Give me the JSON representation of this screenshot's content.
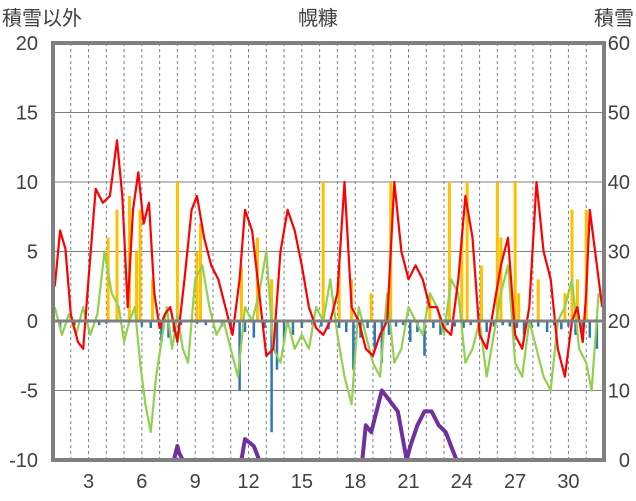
{
  "chart_data": {
    "type": "line",
    "title": "幌糠",
    "left_axis_label": "積雪以外",
    "right_axis_label": "積雪",
    "ylim_left": [
      -10,
      20
    ],
    "yticks_left": [
      "-10",
      "-5",
      "0",
      "5",
      "10",
      "15",
      "20"
    ],
    "ylim_right": [
      0,
      60
    ],
    "yticks_right": [
      "0",
      "10",
      "20",
      "30",
      "40",
      "50",
      "60"
    ],
    "xlim": [
      1,
      32
    ],
    "xticks": [
      "3",
      "6",
      "9",
      "12",
      "15",
      "18",
      "21",
      "24",
      "27",
      "30"
    ],
    "grid": {
      "horizontal": "solid",
      "vertical": "dashed"
    },
    "colors": {
      "temperature": "#ff0000",
      "dew_point": "#92d050",
      "sunshine": "#ffc000",
      "precipitation": "#2e75b6",
      "snow_depth": "#7030a0",
      "zero_line": "#808080",
      "frame": "#808080",
      "grid": "#808080"
    },
    "series": [
      {
        "key": "temperature",
        "axis": "left",
        "style": "line",
        "x": [
          1.1,
          1.4,
          1.7,
          2.0,
          2.4,
          2.7,
          3.0,
          3.4,
          3.8,
          4.2,
          4.6,
          4.9,
          5.2,
          5.5,
          5.8,
          6.1,
          6.4,
          6.7,
          7.0,
          7.3,
          7.6,
          8.0,
          8.4,
          8.8,
          9.1,
          9.5,
          9.9,
          10.3,
          10.7,
          11.1,
          11.5,
          11.8,
          12.2,
          12.6,
          13.0,
          13.4,
          13.8,
          14.2,
          14.6,
          15.0,
          15.4,
          15.8,
          16.2,
          16.6,
          17.0,
          17.4,
          17.8,
          18.2,
          18.6,
          19.0,
          19.4,
          19.8,
          20.2,
          20.6,
          21.0,
          21.4,
          21.8,
          22.2,
          22.6,
          23.0,
          23.4,
          23.8,
          24.2,
          24.6,
          25.0,
          25.4,
          25.8,
          26.2,
          26.6,
          27.0,
          27.4,
          27.8,
          28.2,
          28.6,
          29.0,
          29.4,
          29.8,
          30.2,
          30.5,
          30.8,
          31.0,
          31.2,
          31.5,
          31.9
        ],
        "y": [
          2.5,
          6.5,
          5.2,
          0.5,
          -1.5,
          -2,
          3,
          9.5,
          8.5,
          9,
          13,
          9,
          1,
          8,
          10.7,
          7,
          8.5,
          2,
          -0.5,
          0.5,
          1,
          -1.5,
          3,
          8,
          9,
          6,
          4,
          3,
          1,
          -1,
          3,
          8,
          6.5,
          2,
          -2.5,
          -2,
          5,
          8,
          6.5,
          4,
          1,
          -0.5,
          -1,
          0,
          2,
          10,
          1,
          0,
          -2,
          -2.5,
          -1,
          0,
          10,
          5,
          3,
          4,
          3,
          1,
          1,
          -0.5,
          -1,
          3,
          9,
          6,
          -1,
          -2,
          1,
          4,
          6,
          -1,
          -2,
          1,
          10,
          5,
          3,
          -2,
          -4,
          0,
          1,
          -1.5,
          2,
          8,
          5,
          1
        ]
      },
      {
        "key": "dew_point",
        "axis": "left",
        "style": "line",
        "x": [
          1.1,
          1.5,
          1.9,
          2.3,
          2.7,
          3.1,
          3.5,
          3.9,
          4.3,
          4.7,
          5.0,
          5.3,
          5.6,
          5.9,
          6.2,
          6.5,
          6.8,
          7.1,
          7.4,
          7.7,
          8.0,
          8.3,
          8.6,
          9.0,
          9.4,
          9.8,
          10.2,
          10.6,
          11.0,
          11.4,
          11.8,
          12.2,
          12.6,
          13.0,
          13.4,
          13.8,
          14.2,
          14.6,
          15.0,
          15.4,
          15.8,
          16.2,
          16.6,
          17.0,
          17.4,
          17.8,
          18.2,
          18.6,
          19.0,
          19.4,
          19.8,
          20.2,
          20.6,
          21.0,
          21.4,
          21.8,
          22.2,
          22.6,
          23.0,
          23.4,
          23.8,
          24.2,
          24.6,
          25.0,
          25.4,
          25.8,
          26.2,
          26.6,
          27.0,
          27.4,
          27.8,
          28.2,
          28.6,
          29.0,
          29.4,
          29.8,
          30.2,
          30.6,
          31.0,
          31.3,
          31.7
        ],
        "y": [
          1,
          -1,
          0.5,
          -1,
          1,
          -1,
          0.5,
          5,
          2,
          1,
          -1.5,
          0,
          1,
          -3,
          -6,
          -8,
          -4,
          -1.5,
          1,
          -2,
          0.5,
          -2,
          -3,
          3,
          4,
          1,
          -1,
          0,
          -2,
          -4,
          1,
          0,
          2,
          5,
          -2,
          -3,
          0,
          -2,
          -1,
          -2,
          1,
          0,
          3,
          -1,
          -4,
          -6,
          1,
          -1,
          -3,
          -4,
          2,
          -3,
          -2,
          1,
          0,
          -1,
          2,
          1,
          -1,
          3,
          2,
          -3,
          -2,
          0,
          -4,
          -1,
          2,
          4,
          -3,
          -4,
          0,
          -2,
          -4,
          -5,
          0,
          1,
          3,
          -2,
          -3,
          -5,
          2
        ]
      },
      {
        "key": "sunshine",
        "axis": "left",
        "style": "bar",
        "x": [
          4.1,
          4.6,
          5.3,
          5.7,
          5.9,
          6.6,
          8.0,
          9.1,
          9.3,
          11.6,
          12.5,
          13.3,
          16.2,
          17.1,
          17.8,
          18.9,
          20.0,
          22.2,
          23.3,
          24.0,
          24.3,
          25.1,
          26.0,
          26.2,
          27.0,
          27.2,
          28.3,
          29.8,
          30.2,
          30.5,
          31.0
        ],
        "y": [
          6,
          8,
          9,
          5,
          8,
          3,
          10,
          5,
          7,
          4,
          6,
          3,
          10,
          4,
          3,
          2,
          10,
          2,
          10,
          6,
          10,
          4,
          10,
          6,
          10,
          2,
          3,
          2,
          8,
          3,
          8
        ]
      },
      {
        "key": "precipitation",
        "axis": "left",
        "style": "bar",
        "x": [
          1.4,
          2.2,
          3.6,
          4.0,
          6.0,
          6.5,
          7.1,
          7.5,
          7.8,
          8.2,
          9.1,
          9.6,
          10.5,
          11.0,
          11.5,
          11.8,
          12.3,
          12.9,
          13.3,
          13.6,
          14.0,
          14.5,
          15.0,
          15.6,
          16.1,
          16.5,
          17.1,
          17.5,
          17.9,
          18.3,
          18.7,
          19.1,
          19.5,
          19.9,
          20.3,
          20.7,
          21.1,
          21.5,
          21.9,
          22.4,
          22.8,
          23.2,
          23.6,
          24.1,
          24.5,
          25.0,
          25.4,
          25.8,
          26.3,
          26.7,
          27.1,
          27.5,
          27.9,
          28.3,
          28.8,
          29.2,
          29.6,
          30.0,
          30.4,
          30.8,
          31.2,
          31.6
        ],
        "y": [
          -0.5,
          -0.3,
          -0.3,
          -0.2,
          -0.4,
          -0.5,
          -1.5,
          -1.2,
          -0.8,
          -0.3,
          -0.2,
          -0.3,
          -0.4,
          -0.6,
          -5,
          -0.8,
          -1.2,
          -0.5,
          -8,
          -3.5,
          -1.5,
          -1,
          -0.5,
          -0.3,
          -0.4,
          -0.6,
          -0.5,
          -0.8,
          -3.5,
          -1.2,
          -0.5,
          -2,
          -3,
          -1,
          -0.4,
          -0.3,
          -1.5,
          -0.8,
          -2.5,
          -0.5,
          -1,
          -0.3,
          -0.4,
          -0.5,
          -0.3,
          -0.4,
          -0.8,
          -0.4,
          -0.3,
          -0.4,
          -0.5,
          -1,
          -0.5,
          -0.4,
          -0.8,
          -0.3,
          -0.6,
          -0.4,
          -1,
          -1.5,
          -1.2,
          -2
        ]
      },
      {
        "key": "snow_depth",
        "axis": "right",
        "style": "line",
        "x": [
          1.0,
          7.8,
          8.0,
          8.1,
          8.3,
          11.6,
          11.8,
          12.3,
          12.6,
          18.4,
          18.6,
          18.9,
          19.3,
          19.5,
          19.8,
          20.1,
          20.4,
          20.9,
          21.1,
          21.5,
          21.9,
          22.3,
          22.7,
          23.1,
          23.4,
          23.7,
          32.0
        ],
        "y": [
          0,
          0,
          2,
          1,
          0,
          0,
          3,
          2,
          0,
          0,
          5,
          4,
          8,
          10,
          9,
          8,
          7,
          0,
          2,
          5,
          7,
          7,
          5,
          4,
          2,
          0,
          0
        ]
      }
    ]
  }
}
